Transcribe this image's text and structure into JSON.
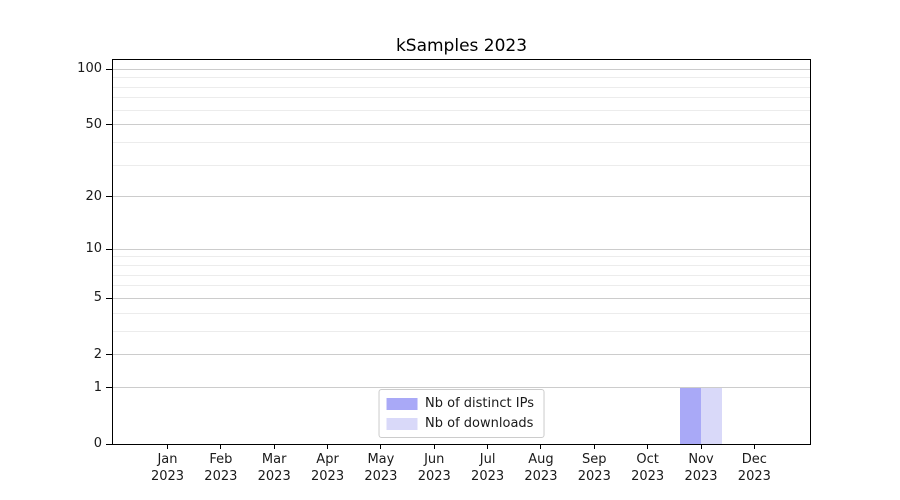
{
  "chart_data": {
    "type": "bar",
    "title": "kSamples 2023",
    "categories": [
      "Jan",
      "Feb",
      "Mar",
      "Apr",
      "May",
      "Jun",
      "Jul",
      "Aug",
      "Sep",
      "Oct",
      "Nov",
      "Dec"
    ],
    "tick_year": "2023",
    "series": [
      {
        "name": "Nb of distinct IPs",
        "color": "#a9a9f7",
        "values": [
          0,
          0,
          0,
          0,
          0,
          0,
          0,
          0,
          0,
          0,
          1,
          0
        ]
      },
      {
        "name": "Nb of downloads",
        "color": "#d9d9f9",
        "values": [
          0,
          0,
          0,
          0,
          0,
          0,
          0,
          0,
          0,
          0,
          1,
          0
        ]
      }
    ],
    "xlabel": "",
    "ylabel": "",
    "y_axis": {
      "scale": "log1p",
      "min": 0,
      "max": 112,
      "major_ticks": [
        0,
        1,
        2,
        5,
        10,
        20,
        50,
        100
      ],
      "minor_gridlines": [
        3,
        4,
        6,
        7,
        8,
        9,
        30,
        40,
        60,
        70,
        80,
        90
      ]
    },
    "grid": {
      "major_color": "#cccccc",
      "minor_color": "#ececec"
    },
    "legend": {
      "position": "lower center"
    },
    "colors": {
      "spine": "#000000",
      "text": "#1a1a1a",
      "background": "#ffffff"
    }
  }
}
